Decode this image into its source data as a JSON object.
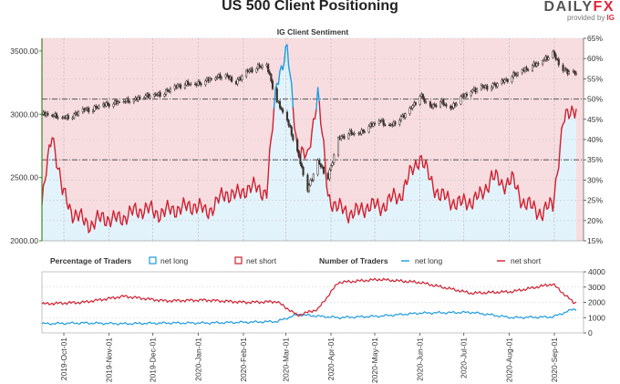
{
  "header": {
    "title": "US 500 Client Positioning",
    "brand_part1": "DAILY",
    "brand_part2": "FX",
    "provided_by": "provided by",
    "provider": "IG"
  },
  "colors": {
    "short_bg": "#f8dde0",
    "long_bg": "#e3f3fc",
    "net_long": "#1e9be0",
    "net_short": "#d1202f",
    "price": "#3a302c",
    "axis_green": "#3a8a2a"
  },
  "chart_data": [
    {
      "type": "line",
      "title": "IG Client Sentiment",
      "series": [
        {
          "name": "",
          "kind": "candlestick-close",
          "x": [
            "2019-09-16",
            "2019-09-23",
            "2019-09-30",
            "2019-10-07",
            "2019-10-14",
            "2019-10-21",
            "2019-10-28",
            "2019-11-04",
            "2019-11-11",
            "2019-11-18",
            "2019-11-25",
            "2019-12-02",
            "2019-12-09",
            "2019-12-16",
            "2019-12-23",
            "2019-12-30",
            "2020-01-06",
            "2020-01-13",
            "2020-01-20",
            "2020-01-27",
            "2020-02-03",
            "2020-02-10",
            "2020-02-17",
            "2020-02-24",
            "2020-03-02",
            "2020-03-09",
            "2020-03-16",
            "2020-03-23",
            "2020-03-30",
            "2020-04-06",
            "2020-04-13",
            "2020-04-20",
            "2020-04-27",
            "2020-05-04",
            "2020-05-11",
            "2020-05-18",
            "2020-05-25",
            "2020-06-01",
            "2020-06-08",
            "2020-06-15",
            "2020-06-22",
            "2020-06-29",
            "2020-07-06",
            "2020-07-13",
            "2020-07-20",
            "2020-07-27",
            "2020-08-03",
            "2020-08-10",
            "2020-08-17",
            "2020-08-24",
            "2020-08-31",
            "2020-09-07",
            "2020-09-14"
          ],
          "values": [
            3000,
            2990,
            2965,
            2985,
            3030,
            3040,
            3070,
            3085,
            3100,
            3110,
            3140,
            3145,
            3170,
            3210,
            3240,
            3230,
            3260,
            3290,
            3300,
            3250,
            3330,
            3370,
            3380,
            3100,
            2950,
            2700,
            2400,
            2620,
            2500,
            2800,
            2850,
            2840,
            2900,
            2950,
            2900,
            2960,
            3030,
            3150,
            3050,
            3100,
            3040,
            3130,
            3180,
            3210,
            3220,
            3250,
            3300,
            3340,
            3380,
            3420,
            3480,
            3350,
            3320
          ]
        },
        {
          "name": "",
          "kind": "percent-long",
          "x": [
            "2019-09-16",
            "2019-09-23",
            "2019-09-30",
            "2019-10-07",
            "2019-10-14",
            "2019-10-21",
            "2019-10-28",
            "2019-11-04",
            "2019-11-11",
            "2019-11-18",
            "2019-11-25",
            "2019-12-02",
            "2019-12-09",
            "2019-12-16",
            "2019-12-23",
            "2019-12-30",
            "2020-01-06",
            "2020-01-13",
            "2020-01-20",
            "2020-01-27",
            "2020-02-03",
            "2020-02-10",
            "2020-02-17",
            "2020-02-24",
            "2020-03-02",
            "2020-03-09",
            "2020-03-16",
            "2020-03-23",
            "2020-03-30",
            "2020-04-06",
            "2020-04-13",
            "2020-04-20",
            "2020-04-27",
            "2020-05-04",
            "2020-05-11",
            "2020-05-18",
            "2020-05-25",
            "2020-06-01",
            "2020-06-08",
            "2020-06-15",
            "2020-06-22",
            "2020-06-29",
            "2020-07-06",
            "2020-07-13",
            "2020-07-20",
            "2020-07-27",
            "2020-08-03",
            "2020-08-10",
            "2020-08-17",
            "2020-08-24",
            "2020-08-31",
            "2020-09-07",
            "2020-09-14"
          ],
          "values": [
            24,
            42,
            27,
            22,
            20,
            19,
            21,
            20,
            21,
            22,
            23,
            22,
            22,
            23,
            23,
            24,
            22,
            24,
            27,
            26,
            28,
            28,
            27,
            55,
            62,
            38,
            35,
            52,
            26,
            23,
            22,
            22,
            24,
            23,
            25,
            26,
            31,
            36,
            30,
            26,
            25,
            24,
            25,
            26,
            31,
            29,
            30,
            25,
            23,
            22,
            24,
            44,
            48
          ]
        }
      ],
      "ylabel_left_ticks": [
        "2000.00",
        "2500.00",
        "3000.00",
        "3500.00"
      ],
      "ylabel_right_ticks": [
        "15%",
        "20%",
        "25%",
        "30%",
        "35%",
        "40%",
        "45%",
        "50%",
        "55%",
        "60%",
        "65%"
      ],
      "ylim_left": [
        2000,
        3600
      ],
      "ylim_right": [
        15,
        65
      ],
      "reference_line_right": 50
    },
    {
      "type": "line",
      "legend": {
        "percentage_label": "Percentage of Traders",
        "pct_long_label": "net long",
        "pct_short_label": "net short",
        "number_label": "Number of Traders",
        "num_long_label": "net long",
        "num_short_label": "net short"
      },
      "series": [
        {
          "name": "net long",
          "x": [
            "2019-09-16",
            "2019-10-14",
            "2019-11-11",
            "2019-12-09",
            "2020-01-06",
            "2020-02-03",
            "2020-02-24",
            "2020-03-09",
            "2020-03-23",
            "2020-04-06",
            "2020-05-04",
            "2020-06-01",
            "2020-07-06",
            "2020-08-03",
            "2020-08-31",
            "2020-09-14"
          ],
          "values": [
            600,
            650,
            600,
            650,
            650,
            700,
            750,
            1200,
            1100,
            1000,
            1100,
            1300,
            1350,
            1000,
            1050,
            1550
          ]
        },
        {
          "name": "net short",
          "x": [
            "2019-09-16",
            "2019-10-14",
            "2019-11-11",
            "2019-12-09",
            "2020-01-06",
            "2020-02-03",
            "2020-02-24",
            "2020-03-09",
            "2020-03-23",
            "2020-04-06",
            "2020-05-04",
            "2020-06-01",
            "2020-07-06",
            "2020-08-03",
            "2020-08-31",
            "2020-09-14"
          ],
          "values": [
            1900,
            2000,
            2400,
            2100,
            2150,
            2000,
            2050,
            1150,
            1550,
            3300,
            3500,
            3300,
            2600,
            2700,
            3200,
            2000
          ]
        }
      ],
      "ylabel_right_ticks": [
        "0",
        "1000",
        "2000",
        "3000",
        "4000"
      ],
      "ylim": [
        0,
        4000
      ]
    }
  ],
  "x_axis": {
    "tick_labels": [
      "2019-Oct-01",
      "2019-Nov-01",
      "2019-Dec-01",
      "2020-Jan-01",
      "2020-Feb-01",
      "2020-Mar-01",
      "2020-Apr-01",
      "2020-May-01",
      "2020-Jun-01",
      "2020-Jul-01",
      "2020-Aug-01",
      "2020-Sep-01"
    ]
  }
}
